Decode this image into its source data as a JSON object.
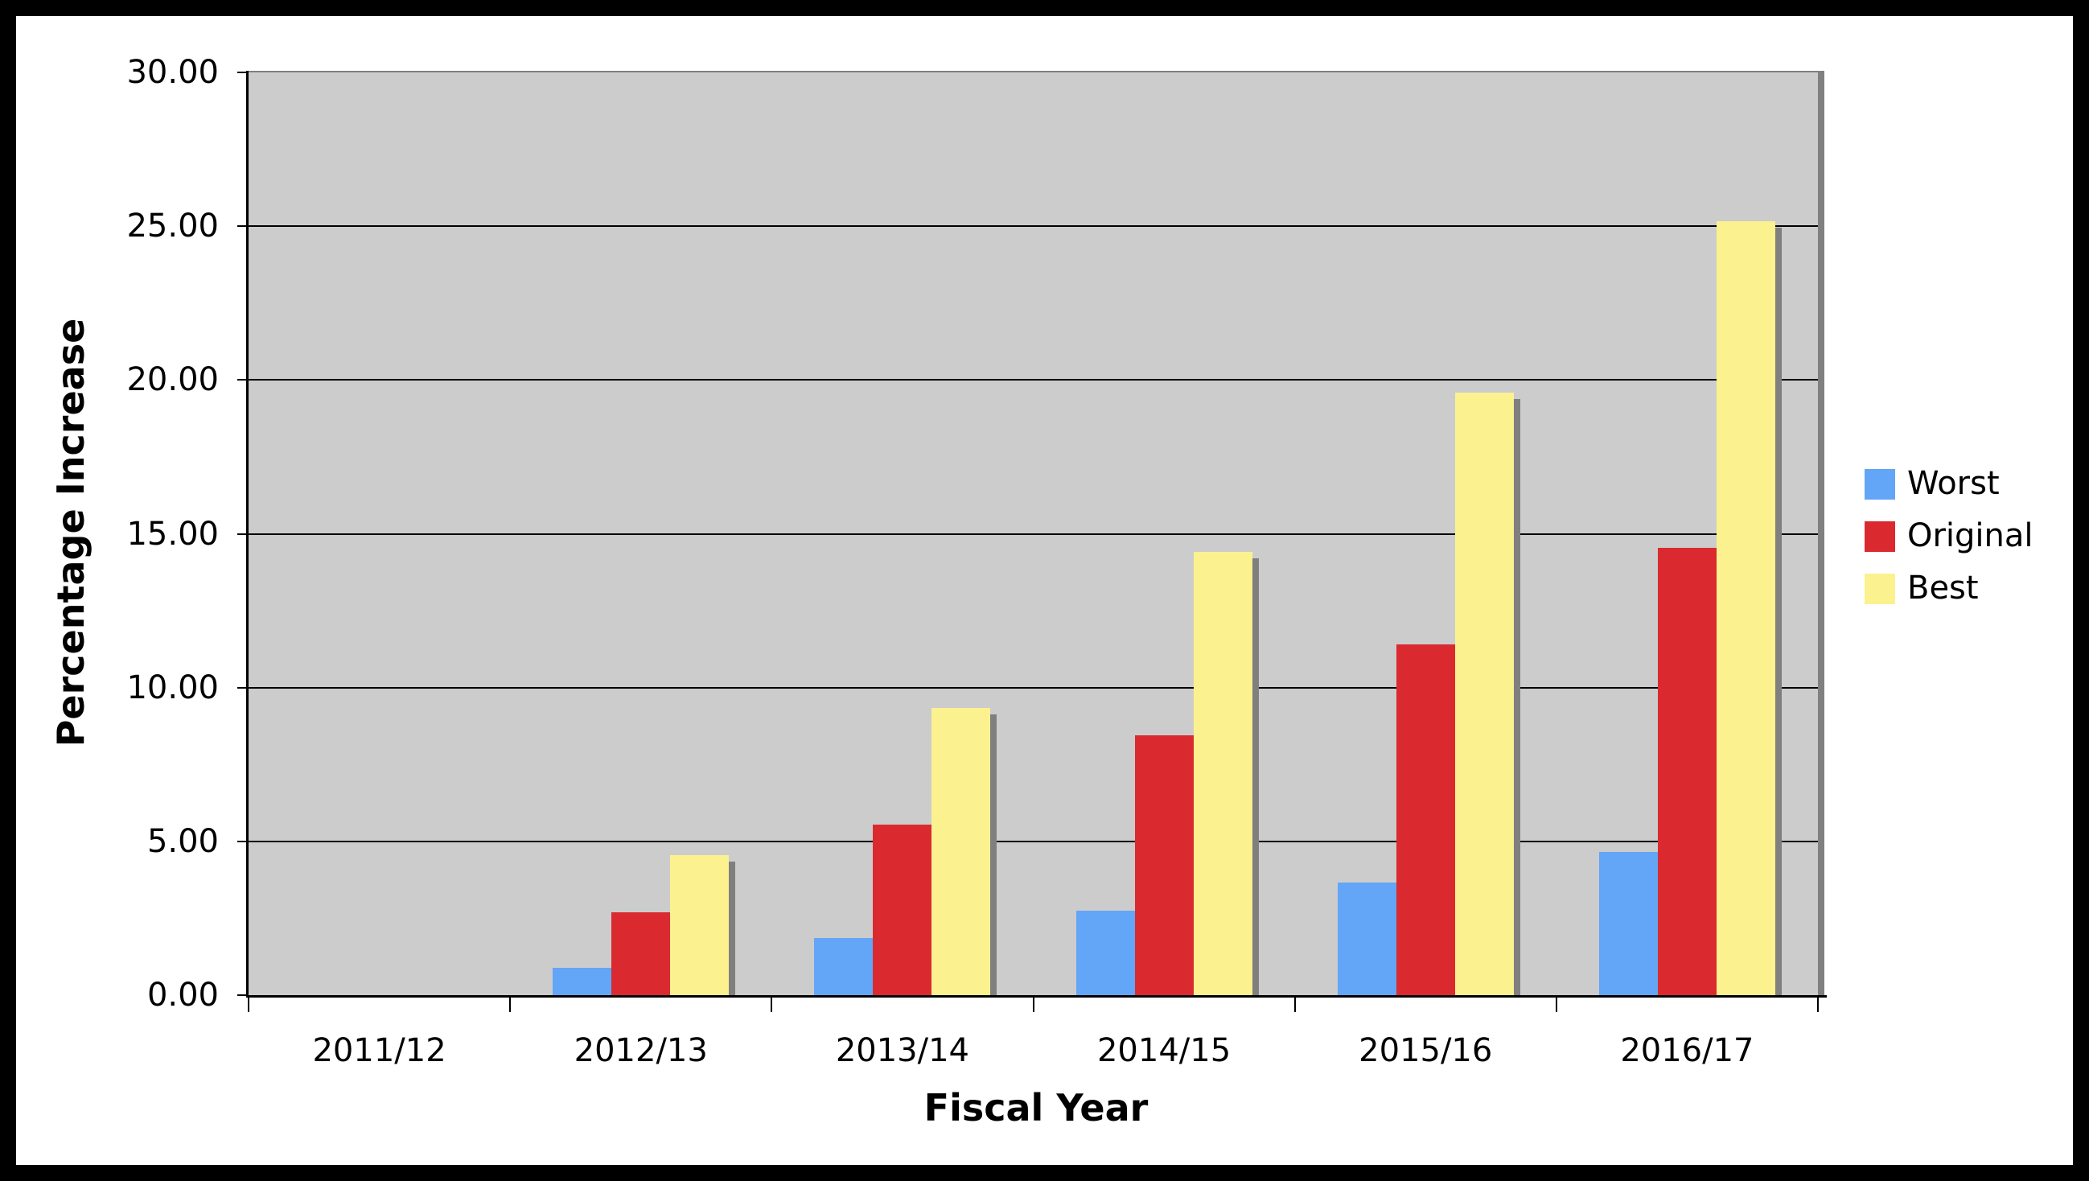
{
  "chart_data": {
    "type": "bar",
    "title": "",
    "xlabel": "Fiscal Year",
    "ylabel": "Percentage Increase",
    "categories": [
      "2011/12",
      "2012/13",
      "2013/14",
      "2014/15",
      "2015/16",
      "2016/17"
    ],
    "series": [
      {
        "name": "Worst",
        "color": "#63A5F7",
        "values": [
          0,
          0.9,
          1.85,
          2.75,
          3.65,
          4.65
        ]
      },
      {
        "name": "Original",
        "color": "#DA2A30",
        "values": [
          0,
          2.7,
          5.55,
          8.45,
          11.4,
          14.55
        ]
      },
      {
        "name": "Best",
        "color": "#FCF18F",
        "values": [
          0,
          4.55,
          9.35,
          14.4,
          19.6,
          25.15
        ]
      }
    ],
    "ylim": [
      0,
      30
    ],
    "ytick_step": 5,
    "ytick_decimals": 2,
    "grid": true,
    "legend_position": "right",
    "legend_entries": [
      "Worst",
      "Original",
      "Best"
    ],
    "plot_bg_color": "#CCCCCC",
    "shadow_color": "#7F7F7F",
    "gridline_color": "#000000",
    "frame_color": "#000000",
    "chart_bg_color": "#FFFFFF"
  }
}
